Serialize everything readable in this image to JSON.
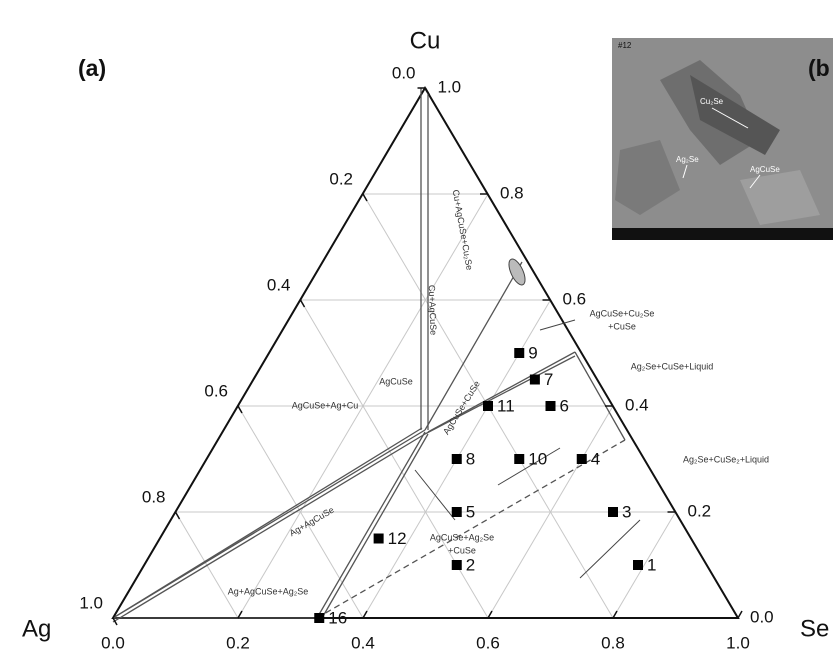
{
  "chart_data": {
    "type": "ternary",
    "panel_label": "(a)",
    "vertices": {
      "top": "Cu",
      "left": "Ag",
      "right": "Se"
    },
    "color": "#000000",
    "se_ticks": [
      {
        "value": 0,
        "label": "0.0"
      },
      0.2,
      0.4,
      0.6,
      0.8,
      {
        "value": 1,
        "label": "1.0"
      }
    ],
    "cu_ticks": [
      {
        "value": 0,
        "label": "0.0"
      },
      0.2,
      0.4,
      0.6,
      0.8,
      {
        "value": 1,
        "label": "1.0"
      }
    ],
    "ag_ticks": [
      {
        "value": 0,
        "label": "0.0"
      },
      0.2,
      0.4,
      0.6,
      0.8,
      {
        "value": 1,
        "label": "1.0"
      }
    ],
    "grid": true,
    "points": {
      "labels": [
        "1",
        "2",
        "3",
        "4",
        "5",
        "6",
        "7",
        "8",
        "9",
        "10",
        "11",
        "12",
        "16"
      ],
      "se": [
        0.79,
        0.5,
        0.7,
        0.6,
        0.45,
        0.5,
        0.45,
        0.4,
        0.4,
        0.5,
        0.4,
        0.35,
        0.33
      ],
      "cu": [
        0.1,
        0.1,
        0.2,
        0.3,
        0.2,
        0.4,
        0.45,
        0.3,
        0.5,
        0.3,
        0.4,
        0.15,
        0
      ]
    },
    "annotations": [
      "Cu+AgCuSe+Cu₂Se",
      "Cu+AgCuSe",
      "AgCuSe",
      "AgCuSe+Ag+Cu",
      "AgCuSe+CuSe",
      "AgCuSe+Cu₂Se",
      "+CuSe",
      "Ag₂Se+CuSe+Liquid",
      "Ag₂Se+CuSe₂+Liquid",
      "Ag+AgCuSe",
      "AgCuSe+Ag₂Se",
      "+CuSe",
      "Ag+AgCuSe+Ag₂Se"
    ]
  },
  "inset": {
    "panel_label": "(b",
    "sample": "#12",
    "labels": [
      "Cu₂Se",
      "Ag₂Se",
      "AgCuSe"
    ]
  }
}
